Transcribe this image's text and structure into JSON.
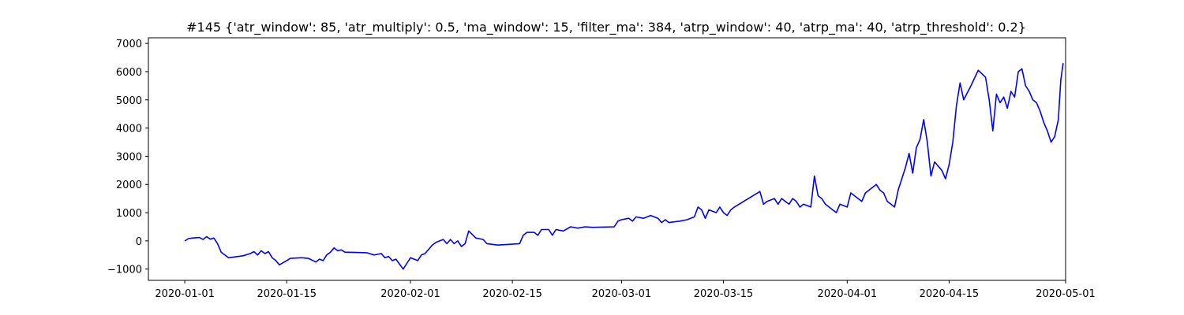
{
  "chart_data": {
    "type": "line",
    "title": "#145 {'atr_window': 85, 'atr_multiply': 0.5, 'ma_window': 15, 'filter_ma': 384, 'atrp_window': 40, 'atrp_ma': 40, 'atrp_threshold': 0.2}",
    "xlabel": "",
    "ylabel": "",
    "x_axis_type": "date",
    "xlim": [
      "2019-12-27",
      "2020-05-01"
    ],
    "ylim": [
      -1400,
      7200
    ],
    "grid": false,
    "x_ticks": [
      "2020-01-01",
      "2020-01-15",
      "2020-02-01",
      "2020-02-15",
      "2020-03-01",
      "2020-03-15",
      "2020-04-01",
      "2020-04-15",
      "2020-05-01"
    ],
    "y_ticks": [
      -1000,
      0,
      1000,
      2000,
      3000,
      4000,
      5000,
      6000,
      7000
    ],
    "series": [
      {
        "color": "#0000ff",
        "points": [
          [
            "2020-01-01",
            0
          ],
          [
            "2020-01-01",
            80
          ],
          [
            "2020-01-02",
            100
          ],
          [
            "2020-01-03",
            120
          ],
          [
            "2020-01-03",
            50
          ],
          [
            "2020-01-04",
            150
          ],
          [
            "2020-01-04",
            60
          ],
          [
            "2020-01-05",
            100
          ],
          [
            "2020-01-05",
            -100
          ],
          [
            "2020-01-06",
            -400
          ],
          [
            "2020-01-07",
            -600
          ],
          [
            "2020-01-09",
            -530
          ],
          [
            "2020-01-10",
            -450
          ],
          [
            "2020-01-10",
            -380
          ],
          [
            "2020-01-11",
            -500
          ],
          [
            "2020-01-11",
            -350
          ],
          [
            "2020-01-12",
            -450
          ],
          [
            "2020-01-12",
            -380
          ],
          [
            "2020-01-13",
            -600
          ],
          [
            "2020-01-13",
            -700
          ],
          [
            "2020-01-14",
            -850
          ],
          [
            "2020-01-15",
            -700
          ],
          [
            "2020-01-15",
            -620
          ],
          [
            "2020-01-17",
            -600
          ],
          [
            "2020-01-18",
            -620
          ],
          [
            "2020-01-19",
            -750
          ],
          [
            "2020-01-19",
            -650
          ],
          [
            "2020-01-20",
            -700
          ],
          [
            "2020-01-20",
            -500
          ],
          [
            "2020-01-21",
            -400
          ],
          [
            "2020-01-21",
            -250
          ],
          [
            "2020-01-22",
            -350
          ],
          [
            "2020-01-22",
            -320
          ],
          [
            "2020-01-23",
            -400
          ],
          [
            "2020-01-26",
            -420
          ],
          [
            "2020-01-27",
            -500
          ],
          [
            "2020-01-28",
            -450
          ],
          [
            "2020-01-28",
            -600
          ],
          [
            "2020-01-29",
            -550
          ],
          [
            "2020-01-29",
            -700
          ],
          [
            "2020-01-30",
            -650
          ],
          [
            "2020-01-31",
            -1000
          ],
          [
            "2020-01-31",
            -800
          ],
          [
            "2020-02-01",
            -600
          ],
          [
            "2020-02-02",
            -700
          ],
          [
            "2020-02-02",
            -500
          ],
          [
            "2020-02-03",
            -450
          ],
          [
            "2020-02-03",
            -300
          ],
          [
            "2020-02-04",
            -150
          ],
          [
            "2020-02-04",
            -50
          ],
          [
            "2020-02-05",
            0
          ],
          [
            "2020-02-05",
            50
          ],
          [
            "2020-02-06",
            -100
          ],
          [
            "2020-02-06",
            50
          ],
          [
            "2020-02-07",
            -100
          ],
          [
            "2020-02-07",
            0
          ],
          [
            "2020-02-08",
            -200
          ],
          [
            "2020-02-08",
            -100
          ],
          [
            "2020-02-09",
            350
          ],
          [
            "2020-02-10",
            100
          ],
          [
            "2020-02-11",
            50
          ],
          [
            "2020-02-11",
            -100
          ],
          [
            "2020-02-13",
            -150
          ],
          [
            "2020-02-16",
            -100
          ],
          [
            "2020-02-16",
            200
          ],
          [
            "2020-02-17",
            300
          ],
          [
            "2020-02-18",
            300
          ],
          [
            "2020-02-18",
            200
          ],
          [
            "2020-02-19",
            400
          ],
          [
            "2020-02-20",
            400
          ],
          [
            "2020-02-20",
            200
          ],
          [
            "2020-02-21",
            400
          ],
          [
            "2020-02-22",
            350
          ],
          [
            "2020-02-23",
            500
          ],
          [
            "2020-02-24",
            450
          ],
          [
            "2020-02-25",
            500
          ],
          [
            "2020-02-26",
            480
          ],
          [
            "2020-02-29",
            500
          ],
          [
            "2020-02-29",
            700
          ],
          [
            "2020-03-01",
            750
          ],
          [
            "2020-03-02",
            800
          ],
          [
            "2020-03-02",
            700
          ],
          [
            "2020-03-03",
            850
          ],
          [
            "2020-03-04",
            800
          ],
          [
            "2020-03-05",
            900
          ],
          [
            "2020-03-06",
            800
          ],
          [
            "2020-03-06",
            650
          ],
          [
            "2020-03-07",
            750
          ],
          [
            "2020-03-07",
            650
          ],
          [
            "2020-03-09",
            700
          ],
          [
            "2020-03-10",
            750
          ],
          [
            "2020-03-11",
            850
          ],
          [
            "2020-03-11",
            1200
          ],
          [
            "2020-03-12",
            1100
          ],
          [
            "2020-03-12",
            800
          ],
          [
            "2020-03-13",
            1100
          ],
          [
            "2020-03-14",
            1000
          ],
          [
            "2020-03-14",
            1200
          ],
          [
            "2020-03-15",
            1000
          ],
          [
            "2020-03-15",
            900
          ],
          [
            "2020-03-16",
            1100
          ],
          [
            "2020-03-16",
            1200
          ],
          [
            "2020-03-20",
            1750
          ],
          [
            "2020-03-20",
            1300
          ],
          [
            "2020-03-21",
            1400
          ],
          [
            "2020-03-22",
            1500
          ],
          [
            "2020-03-22",
            1300
          ],
          [
            "2020-03-23",
            1500
          ],
          [
            "2020-03-23",
            1400
          ],
          [
            "2020-03-24",
            1300
          ],
          [
            "2020-03-24",
            1500
          ],
          [
            "2020-03-25",
            1400
          ],
          [
            "2020-03-25",
            1200
          ],
          [
            "2020-03-26",
            1300
          ],
          [
            "2020-03-27",
            1200
          ],
          [
            "2020-03-27",
            2300
          ],
          [
            "2020-03-28",
            1600
          ],
          [
            "2020-03-28",
            1500
          ],
          [
            "2020-03-29",
            1300
          ],
          [
            "2020-03-30",
            1100
          ],
          [
            "2020-03-30",
            1000
          ],
          [
            "2020-03-31",
            1300
          ],
          [
            "2020-04-01",
            1200
          ],
          [
            "2020-04-01",
            1700
          ],
          [
            "2020-04-02",
            1600
          ],
          [
            "2020-04-03",
            1400
          ],
          [
            "2020-04-03",
            1700
          ],
          [
            "2020-04-04",
            1800
          ],
          [
            "2020-04-05",
            2000
          ],
          [
            "2020-04-05",
            1800
          ],
          [
            "2020-04-06",
            1700
          ],
          [
            "2020-04-06",
            1400
          ],
          [
            "2020-04-07",
            1300
          ],
          [
            "2020-04-07",
            1200
          ],
          [
            "2020-04-08",
            1800
          ],
          [
            "2020-04-09",
            2600
          ],
          [
            "2020-04-09",
            3100
          ],
          [
            "2020-04-10",
            2400
          ],
          [
            "2020-04-10",
            3300
          ],
          [
            "2020-04-11",
            3600
          ],
          [
            "2020-04-11",
            4300
          ],
          [
            "2020-04-12",
            3500
          ],
          [
            "2020-04-12",
            2300
          ],
          [
            "2020-04-13",
            2800
          ],
          [
            "2020-04-14",
            2500
          ],
          [
            "2020-04-14",
            2200
          ],
          [
            "2020-04-15",
            2700
          ],
          [
            "2020-04-15",
            3500
          ],
          [
            "2020-04-16",
            4800
          ],
          [
            "2020-04-16",
            5600
          ],
          [
            "2020-04-17",
            5000
          ],
          [
            "2020-04-18",
            5500
          ],
          [
            "2020-04-19",
            6050
          ],
          [
            "2020-04-20",
            5800
          ],
          [
            "2020-04-20",
            5000
          ],
          [
            "2020-04-21",
            3900
          ],
          [
            "2020-04-21",
            5200
          ],
          [
            "2020-04-22",
            4900
          ],
          [
            "2020-04-22",
            5100
          ],
          [
            "2020-04-23",
            4700
          ],
          [
            "2020-04-23",
            5300
          ],
          [
            "2020-04-24",
            5100
          ],
          [
            "2020-04-24",
            6000
          ],
          [
            "2020-04-25",
            6100
          ],
          [
            "2020-04-25",
            5500
          ],
          [
            "2020-04-26",
            5300
          ],
          [
            "2020-04-26",
            5000
          ],
          [
            "2020-04-27",
            4900
          ],
          [
            "2020-04-27",
            4600
          ],
          [
            "2020-04-28",
            4200
          ],
          [
            "2020-04-28",
            3900
          ],
          [
            "2020-04-29",
            3500
          ],
          [
            "2020-04-29",
            3700
          ],
          [
            "2020-04-30",
            4300
          ],
          [
            "2020-04-30",
            5700
          ],
          [
            "2020-04-30",
            6300
          ]
        ]
      }
    ]
  }
}
